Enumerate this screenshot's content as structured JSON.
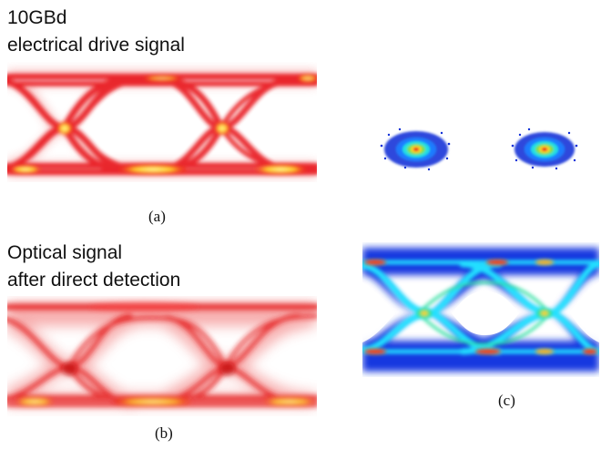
{
  "panel_a": {
    "label_line1": "10GBd",
    "label_line2": "electrical drive signal",
    "caption": "(a)"
  },
  "panel_b": {
    "label_line1": "Optical signal",
    "label_line2": "after direct detection",
    "caption": "(b)"
  },
  "panel_c": {
    "caption": "(c)"
  },
  "colors": {
    "heat_red": "#e8161a",
    "heat_yellow": "#ffe94a",
    "density_blue": "#1030d8",
    "density_cyan": "#20e0ff",
    "density_green": "#2ee07a"
  }
}
